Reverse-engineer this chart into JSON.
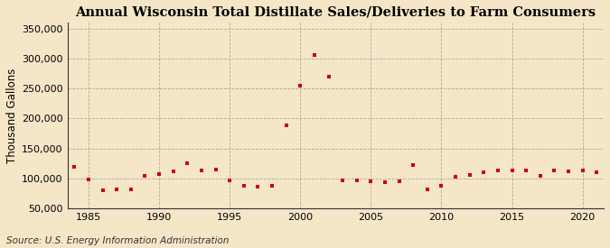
{
  "title": "Annual Wisconsin Total Distillate Sales/Deliveries to Farm Consumers",
  "ylabel": "Thousand Gallons",
  "source": "Source: U.S. Energy Information Administration",
  "background_color": "#f5e6c8",
  "plot_bg_color": "#f5e6c8",
  "marker_color": "#cc0000",
  "grid_color": "#999999",
  "spine_color": "#333333",
  "years": [
    1984,
    1985,
    1986,
    1987,
    1988,
    1989,
    1990,
    1991,
    1992,
    1993,
    1994,
    1995,
    1996,
    1997,
    1998,
    1999,
    2000,
    2001,
    2002,
    2003,
    2004,
    2005,
    2006,
    2007,
    2008,
    2009,
    2010,
    2011,
    2012,
    2013,
    2014,
    2015,
    2016,
    2017,
    2018,
    2019,
    2020,
    2021
  ],
  "values": [
    120000,
    98000,
    80000,
    82000,
    82000,
    104000,
    108000,
    112000,
    125000,
    113000,
    115000,
    97000,
    88000,
    87000,
    88000,
    188000,
    255000,
    305000,
    270000,
    97000,
    97000,
    95000,
    94000,
    95000,
    122000,
    82000,
    88000,
    103000,
    106000,
    110000,
    113000,
    113000,
    114000,
    105000,
    113000,
    112000,
    113000,
    110000
  ],
  "ylim": [
    50000,
    360000
  ],
  "yticks": [
    50000,
    100000,
    150000,
    200000,
    250000,
    300000,
    350000
  ],
  "xticks": [
    1985,
    1990,
    1995,
    2000,
    2005,
    2010,
    2015,
    2020
  ],
  "xlim": [
    1983.5,
    2021.5
  ],
  "title_fontsize": 10.5,
  "label_fontsize": 8.5,
  "tick_fontsize": 8,
  "source_fontsize": 7.5
}
